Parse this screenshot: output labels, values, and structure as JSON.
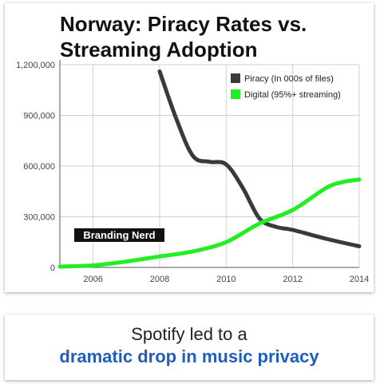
{
  "chart_data": {
    "type": "line",
    "title": "Norway: Piracy Rates vs.\nStreaming Adoption",
    "xlabel": "",
    "ylabel": "",
    "xlim": [
      2005,
      2014
    ],
    "ylim": [
      0,
      1200000
    ],
    "x_ticks": [
      "2006",
      "2008",
      "2010",
      "2012",
      "2014"
    ],
    "y_ticks": [
      "0",
      "300,000",
      "600,000",
      "900,000",
      "1,200,000"
    ],
    "grid": true,
    "legend_position": "top-right",
    "series": [
      {
        "name": "Piracy (In 000s of files)",
        "color": "#3a3a3a",
        "points": [
          [
            2008,
            1160000
          ],
          [
            2008.5,
            880000
          ],
          [
            2009,
            660000
          ],
          [
            2009.5,
            625000
          ],
          [
            2010,
            610000
          ],
          [
            2010.5,
            470000
          ],
          [
            2011,
            290000
          ],
          [
            2011.5,
            240000
          ],
          [
            2012,
            222000
          ],
          [
            2013,
            170000
          ],
          [
            2014,
            125000
          ]
        ]
      },
      {
        "name": "Digital (95%+ streaming)",
        "color": "#22ee22",
        "points": [
          [
            2005,
            5000
          ],
          [
            2006,
            12000
          ],
          [
            2007,
            35000
          ],
          [
            2008,
            65000
          ],
          [
            2009,
            95000
          ],
          [
            2010,
            150000
          ],
          [
            2011,
            260000
          ],
          [
            2012,
            340000
          ],
          [
            2013,
            470000
          ],
          [
            2013.5,
            505000
          ],
          [
            2014,
            520000
          ]
        ]
      }
    ]
  },
  "watermark": "Branding Nerd",
  "caption": {
    "line1": "Spotify led to a",
    "line2": "dramatic drop in music privacy"
  }
}
